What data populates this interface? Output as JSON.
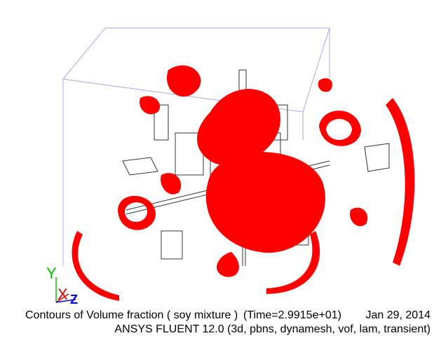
{
  "footer": {
    "title": "Contours of Volume fraction ( soy mixture )",
    "time": "(Time=2.9915e+01)",
    "date": "Jan 29, 2014",
    "solver": "ANSYS FLUENT 12.0 (3d, pbns, dynamesh, vof, lam, transient)"
  },
  "axes": {
    "y": "Y",
    "x": "X",
    "z": "Z"
  }
}
